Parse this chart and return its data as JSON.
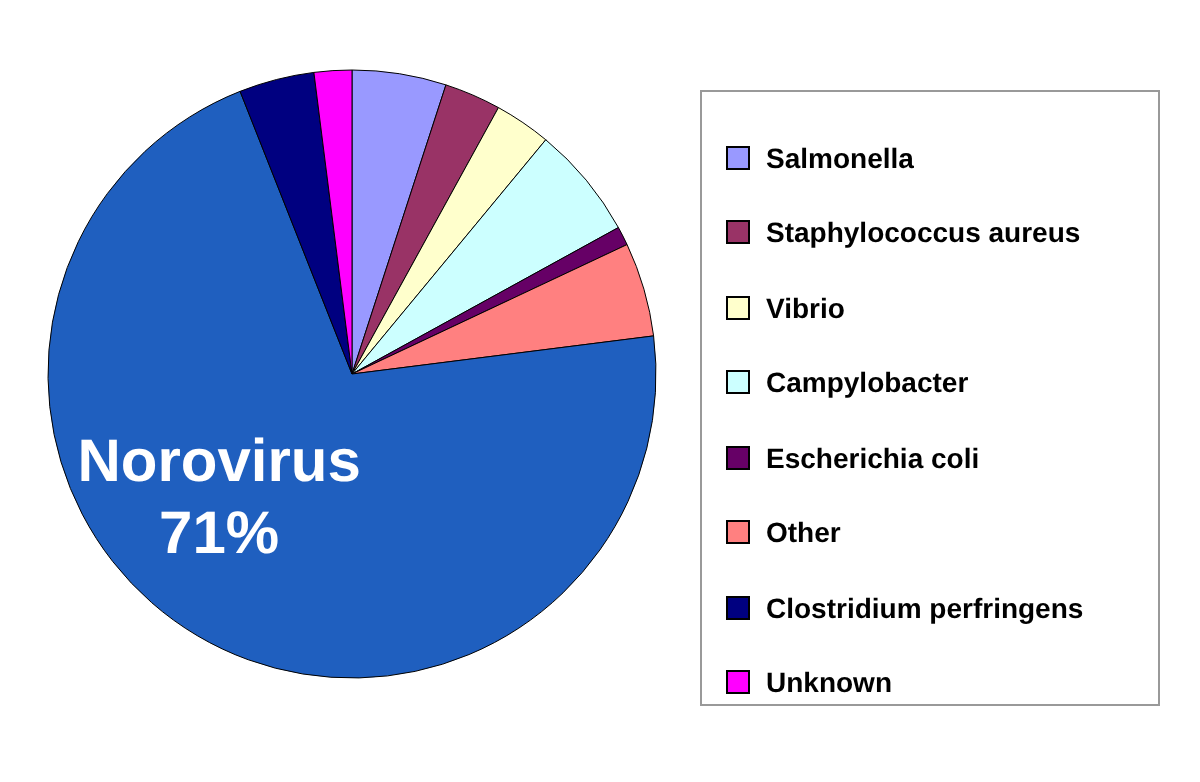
{
  "chart_data": {
    "type": "pie",
    "categories": [
      "Salmonella",
      "Staphylococcus aureus",
      "Vibrio",
      "Campylobacter",
      "Escherichia coli",
      "Other",
      "Norovirus",
      "Clostridium perfringens",
      "Unknown"
    ],
    "values": [
      5,
      3,
      3,
      6,
      1,
      5,
      71,
      4,
      2
    ],
    "colors": [
      "#9999ff",
      "#993366",
      "#ffffcc",
      "#ccffff",
      "#660066",
      "#ff8080",
      "#1f5fbf",
      "#000080",
      "#ff00ff"
    ],
    "value_labels": [
      null,
      null,
      null,
      null,
      null,
      null,
      "71%",
      null,
      null
    ],
    "legend": "right"
  }
}
